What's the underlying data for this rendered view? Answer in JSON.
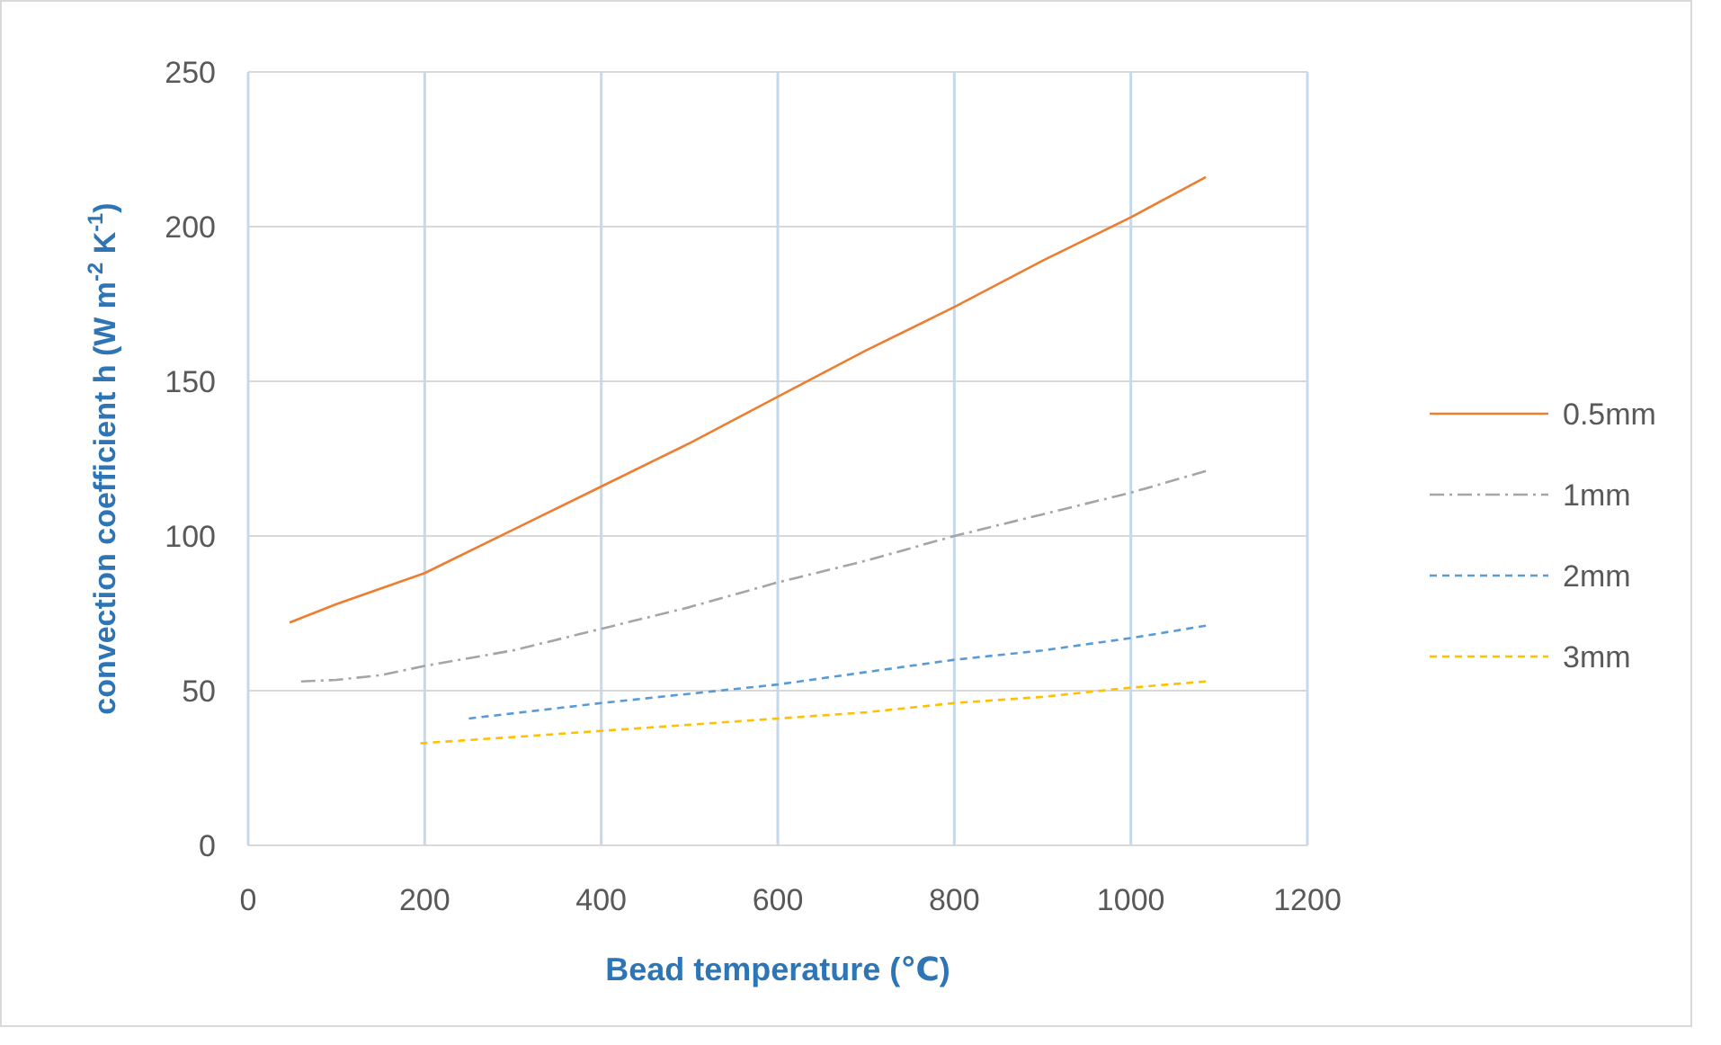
{
  "chart_data": {
    "type": "line",
    "xlabel": "Bead temperature (℃)",
    "ylabel": "convection coefficient h (W m$^{-2}$ K$^{-1}$)",
    "xlim": [
      0,
      1200
    ],
    "xticks": [
      0,
      200,
      400,
      600,
      800,
      1000,
      1200
    ],
    "ylim": [
      0,
      250
    ],
    "yticks": [
      0,
      50,
      100,
      150,
      200,
      250
    ],
    "grid": true,
    "legend": "right",
    "series": [
      {
        "name": "0.5mm",
        "color": "#ed7d31",
        "line_style": "solid",
        "x": [
          47,
          100,
          200,
          300,
          400,
          500,
          600,
          700,
          800,
          900,
          1000,
          1085
        ],
        "values": [
          72,
          78,
          88,
          102,
          116,
          130,
          145,
          160,
          174,
          189,
          203,
          216
        ]
      },
      {
        "name": "1mm",
        "color": "#a5a5a5",
        "line_style": "dashdot",
        "x": [
          60,
          100,
          150,
          200,
          300,
          400,
          500,
          600,
          700,
          800,
          900,
          1000,
          1085
        ],
        "values": [
          53,
          53.5,
          55,
          58,
          63,
          70,
          77,
          85,
          92,
          100,
          107,
          114,
          121
        ]
      },
      {
        "name": "2mm",
        "color": "#5b9bd5",
        "line_style": "dashed",
        "x": [
          250,
          400,
          500,
          600,
          700,
          800,
          900,
          1000,
          1085
        ],
        "values": [
          41,
          46,
          49,
          52,
          56,
          60,
          63,
          67,
          71
        ]
      },
      {
        "name": "3mm",
        "color": "#ffc000",
        "line_style": "dashed",
        "x": [
          195,
          300,
          400,
          500,
          600,
          700,
          800,
          900,
          1000,
          1085
        ],
        "values": [
          33,
          35,
          37,
          39,
          41,
          43,
          46,
          48,
          51,
          53
        ]
      }
    ]
  }
}
